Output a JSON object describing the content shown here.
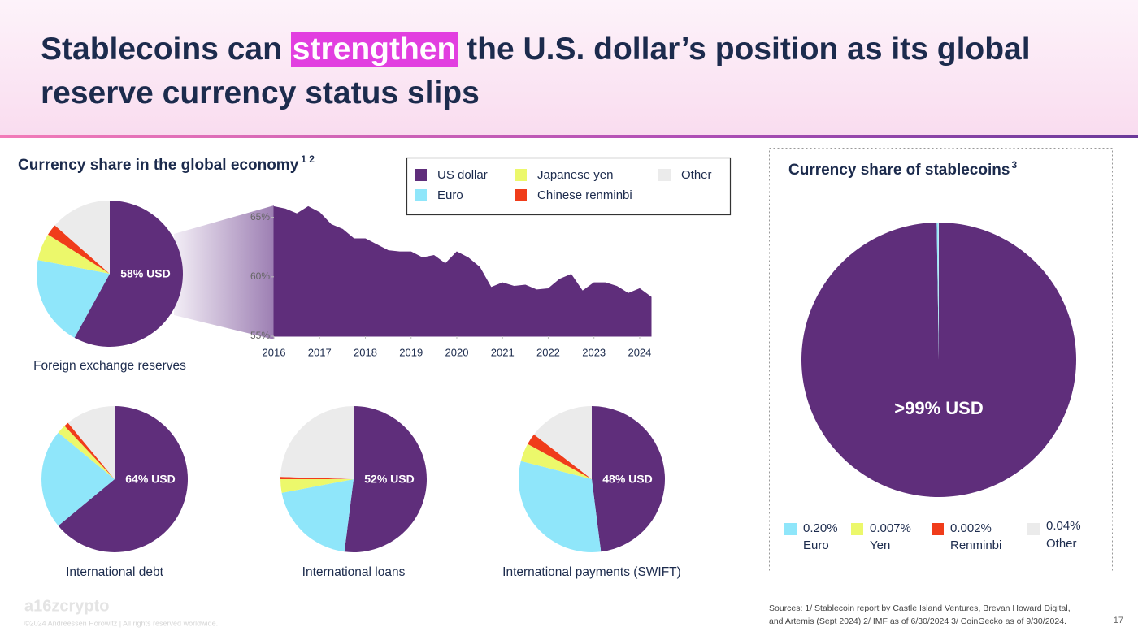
{
  "header": {
    "title_start": "Stablecoins can",
    "title_highlight": "strengthen",
    "title_end": "the U.S. dollar’s position as its global reserve currency status slips"
  },
  "economy_heading": {
    "title": "Currency share in the global economy",
    "notes": "1 2"
  },
  "legend": {
    "names": [
      "US dollar",
      "Euro",
      "Japanese yen",
      "Chinese renminbi",
      "Other"
    ],
    "colors": [
      "#5f2e7b",
      "#8fe6fa",
      "#ecf86b",
      "#f03c1a",
      "#ebebeb"
    ]
  },
  "chart_data": [
    {
      "type": "pie",
      "title": "Foreign exchange reserves",
      "values": [
        58,
        20,
        6,
        2.5,
        13.5
      ],
      "center_label": "58% USD"
    },
    {
      "type": "area",
      "color": "#5f2e7b",
      "x": [
        2016,
        2016.25,
        2016.5,
        2016.75,
        2017,
        2017.25,
        2017.5,
        2017.75,
        2018,
        2018.25,
        2018.5,
        2018.75,
        2019,
        2019.25,
        2019.5,
        2019.75,
        2020,
        2020.25,
        2020.5,
        2020.75,
        2021,
        2021.25,
        2021.5,
        2021.75,
        2022,
        2022.25,
        2022.5,
        2022.75,
        2023,
        2023.25,
        2023.5,
        2023.75,
        2024,
        2024.25
      ],
      "values": [
        65.9,
        65.7,
        65.3,
        65.9,
        65.4,
        64.4,
        64.0,
        63.2,
        63.2,
        62.7,
        62.2,
        62.1,
        62.1,
        61.6,
        61.8,
        61.1,
        62.1,
        61.6,
        60.8,
        59.1,
        59.5,
        59.2,
        59.3,
        58.9,
        59.0,
        59.8,
        60.2,
        58.8,
        59.5,
        59.5,
        59.2,
        58.6,
        59.0,
        58.3
      ],
      "xlim": [
        2016,
        2024.25
      ],
      "xticks": [
        2016,
        2017,
        2018,
        2019,
        2020,
        2021,
        2022,
        2023,
        2024
      ],
      "ylim": [
        55,
        66
      ],
      "yticks": [
        {
          "value": 55,
          "label": "55%"
        },
        {
          "value": 60,
          "label": "60%"
        },
        {
          "value": 65,
          "label": "65%"
        }
      ]
    },
    {
      "type": "pie",
      "title": "International debt",
      "values": [
        64,
        22,
        2,
        1,
        11
      ],
      "center_label": "64% USD"
    },
    {
      "type": "pie",
      "title": "International loans",
      "values": [
        52,
        20,
        3,
        0.5,
        24.5
      ],
      "center_label": "52% USD"
    },
    {
      "type": "pie",
      "title": "International payments (SWIFT)",
      "values": [
        48,
        31,
        4,
        2.5,
        14.5
      ],
      "center_label": "48% USD"
    },
    {
      "type": "stablecoin-pie",
      "title": "Currency share of stablecoins",
      "title_note": "3",
      "categories": [
        null,
        "Euro",
        "Yen",
        "Renminbi",
        "Other"
      ],
      "values": [
        99.751,
        0.2,
        0.007,
        0.002,
        0.04
      ],
      "value_labels": [
        ">99% USD",
        "0.20%",
        "0.007%",
        "0.002%",
        "0.04%"
      ]
    }
  ],
  "footer": {
    "logo": "a16zcrypto",
    "copyright": "©2024 Andreessen Horowitz  |  All rights reserved worldwide.",
    "sources_line1": "Sources: 1/ Stablecoin report by Castle Island Ventures, Brevan Howard Digital,",
    "sources_line2": "and Artemis (Sept 2024) 2/ IMF as of 6/30/2024 3/ CoinGecko as of 9/30/2024.",
    "page": "17"
  }
}
